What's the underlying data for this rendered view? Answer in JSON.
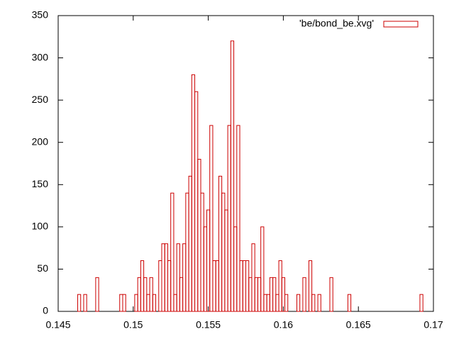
{
  "chart_data": {
    "type": "histogram",
    "x": [
      0.1464,
      0.1468,
      0.1476,
      0.1492,
      0.1494,
      0.1502,
      0.1504,
      0.1506,
      0.1508,
      0.151,
      0.1512,
      0.1514,
      0.1518,
      0.152,
      0.1522,
      0.1524,
      0.1526,
      0.1528,
      0.153,
      0.1532,
      0.1534,
      0.1536,
      0.1538,
      0.154,
      0.1542,
      0.1544,
      0.1546,
      0.1548,
      0.155,
      0.1552,
      0.1554,
      0.1556,
      0.1558,
      0.156,
      0.1562,
      0.1564,
      0.1566,
      0.1568,
      0.157,
      0.1572,
      0.1574,
      0.1576,
      0.1578,
      0.158,
      0.1582,
      0.1584,
      0.1586,
      0.1588,
      0.159,
      0.1592,
      0.1594,
      0.1596,
      0.1598,
      0.16,
      0.1602,
      0.161,
      0.1614,
      0.1618,
      0.162,
      0.1624,
      0.1632,
      0.1644,
      0.1692
    ],
    "series": [
      {
        "name": "'be/bond_be.xvg'",
        "color": "#cc0000",
        "values": [
          20,
          20,
          40,
          20,
          20,
          20,
          40,
          60,
          40,
          20,
          40,
          20,
          60,
          80,
          80,
          60,
          140,
          20,
          80,
          40,
          80,
          140,
          160,
          280,
          260,
          180,
          140,
          100,
          120,
          220,
          60,
          60,
          160,
          140,
          120,
          220,
          320,
          100,
          220,
          60,
          60,
          60,
          40,
          80,
          40,
          40,
          100,
          20,
          20,
          40,
          40,
          20,
          60,
          40,
          20,
          20,
          40,
          60,
          20,
          20,
          40,
          20,
          20
        ]
      }
    ],
    "xlim": [
      0.145,
      0.17
    ],
    "xticks": [
      0.145,
      0.15,
      0.155,
      0.16,
      0.165,
      0.17
    ],
    "ylim": [
      0,
      350
    ],
    "yticks": [
      0,
      50,
      100,
      150,
      200,
      250,
      300,
      350
    ],
    "legend": "top-right"
  }
}
